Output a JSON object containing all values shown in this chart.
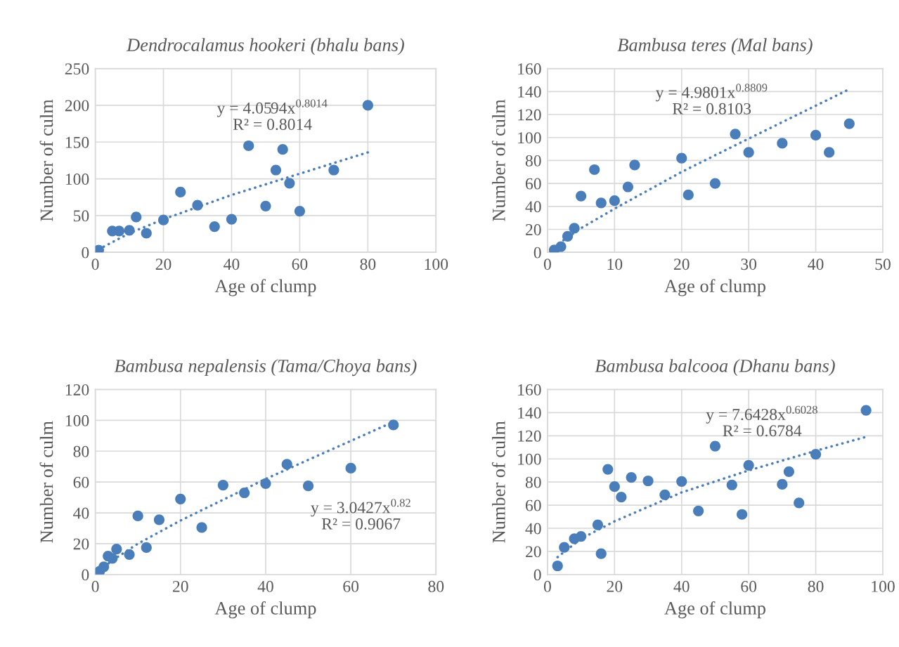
{
  "chart_data": [
    {
      "type": "scatter",
      "title": "Dendrocalamus hookeri (bhalu bans)",
      "xlabel": "Age of clump",
      "ylabel": "Number of culm",
      "xlim": [
        0,
        100
      ],
      "xticks": [
        0,
        20,
        40,
        60,
        80,
        100
      ],
      "ylim": [
        0,
        250
      ],
      "yticks": [
        0,
        50,
        100,
        150,
        200,
        250
      ],
      "grid": true,
      "series": [
        {
          "color": "#4a7ebb",
          "marker": "circle",
          "x": [
            1,
            5,
            7,
            10,
            12,
            15,
            20,
            25,
            30,
            35,
            40,
            45,
            50,
            53,
            55,
            57,
            60,
            70,
            80
          ],
          "values": [
            3,
            29,
            29,
            30,
            48,
            26,
            44,
            82,
            64,
            35,
            45,
            145,
            63,
            112,
            140,
            94,
            56,
            112,
            200
          ]
        },
        {
          "type": "line",
          "color": "#4a7ebb",
          "marker": "none",
          "line_style": "dotted",
          "x": [
            1,
            10,
            20,
            40,
            60,
            80
          ],
          "values": [
            4,
            26,
            45,
            78,
            107,
            136
          ]
        }
      ],
      "annotations": [
        "y = 4.0594x$^{0.8014}$\nR² = 0.8014"
      ]
    },
    {
      "type": "scatter",
      "title": "Bambusa teres (Mal bans)",
      "xlabel": "Age of clump",
      "ylabel": "Number of culm",
      "xlim": [
        0,
        50
      ],
      "xticks": [
        0,
        10,
        20,
        30,
        40,
        50
      ],
      "ylim": [
        0,
        160
      ],
      "yticks": [
        0,
        20,
        40,
        60,
        80,
        100,
        120,
        140,
        160
      ],
      "grid": true,
      "series": [
        {
          "color": "#4a7ebb",
          "marker": "circle",
          "x": [
            1,
            2,
            3,
            4,
            5,
            7,
            8,
            10,
            12,
            13,
            20,
            21,
            25,
            28,
            30,
            35,
            40,
            42,
            45
          ],
          "values": [
            2,
            5,
            14,
            21,
            49,
            72,
            43,
            45,
            57,
            76,
            82,
            50,
            60,
            103,
            87,
            95,
            102,
            87,
            112
          ]
        },
        {
          "type": "line",
          "color": "#4a7ebb",
          "marker": "none",
          "line_style": "dotted",
          "x": [
            1,
            5,
            10,
            20,
            30,
            45
          ],
          "values": [
            5,
            21,
            38,
            70,
            99,
            142
          ]
        }
      ],
      "annotations": [
        "y = 4.9801x$^{0.8809}$\nR² = 0.8103"
      ]
    },
    {
      "type": "scatter",
      "title": "Bambusa nepalensis (Tama/Choya bans)",
      "xlabel": "Age of clump",
      "ylabel": "Number of culm",
      "xlim": [
        0,
        80
      ],
      "xticks": [
        0,
        20,
        40,
        60,
        80
      ],
      "ylim": [
        0,
        120
      ],
      "yticks": [
        0,
        20,
        40,
        60,
        80,
        100,
        120
      ],
      "grid": true,
      "series": [
        {
          "color": "#4a7ebb",
          "marker": "circle",
          "x": [
            1,
            2,
            3,
            4,
            5,
            8,
            10,
            12,
            15,
            20,
            25,
            30,
            35,
            40,
            45,
            50,
            60,
            70
          ],
          "values": [
            2,
            5,
            12,
            10.5,
            16.5,
            13,
            38,
            17.5,
            35.5,
            49,
            30.5,
            58,
            53,
            59,
            71.5,
            57.5,
            69,
            97
          ]
        },
        {
          "type": "line",
          "color": "#4a7ebb",
          "marker": "none",
          "line_style": "dotted",
          "x": [
            1,
            5,
            10,
            20,
            40,
            70
          ],
          "values": [
            3,
            11,
            20,
            35,
            62,
            99
          ]
        }
      ],
      "annotations": [
        "y = 3.0427x$^{0.82}$\nR² = 0.9067"
      ]
    },
    {
      "type": "scatter",
      "title": "Bambusa balcooa (Dhanu bans)",
      "xlabel": "Age of clump",
      "ylabel": "Number of culm",
      "xlim": [
        0,
        100
      ],
      "xticks": [
        0,
        20,
        40,
        60,
        80,
        100
      ],
      "ylim": [
        0,
        160
      ],
      "yticks": [
        0,
        20,
        40,
        60,
        80,
        100,
        120,
        140,
        160
      ],
      "grid": true,
      "series": [
        {
          "color": "#4a7ebb",
          "marker": "circle",
          "x": [
            3,
            5,
            8,
            10,
            15,
            16,
            18,
            20,
            22,
            25,
            30,
            35,
            40,
            45,
            50,
            55,
            58,
            60,
            70,
            72,
            75,
            80,
            95
          ],
          "values": [
            7.5,
            23.5,
            31,
            33,
            43,
            18,
            91,
            76,
            67,
            84,
            81,
            69,
            80.5,
            55,
            111,
            77.5,
            52,
            94.5,
            78,
            89,
            62,
            104,
            142
          ]
        },
        {
          "type": "line",
          "color": "#4a7ebb",
          "marker": "none",
          "line_style": "dotted",
          "x": [
            3,
            10,
            20,
            40,
            60,
            80,
            95
          ],
          "values": [
            15,
            31,
            46,
            71,
            90,
            107,
            119
          ]
        }
      ],
      "annotations": [
        "y = 7.6428x$^{0.6028}$\nR² = 0.6784"
      ]
    }
  ]
}
